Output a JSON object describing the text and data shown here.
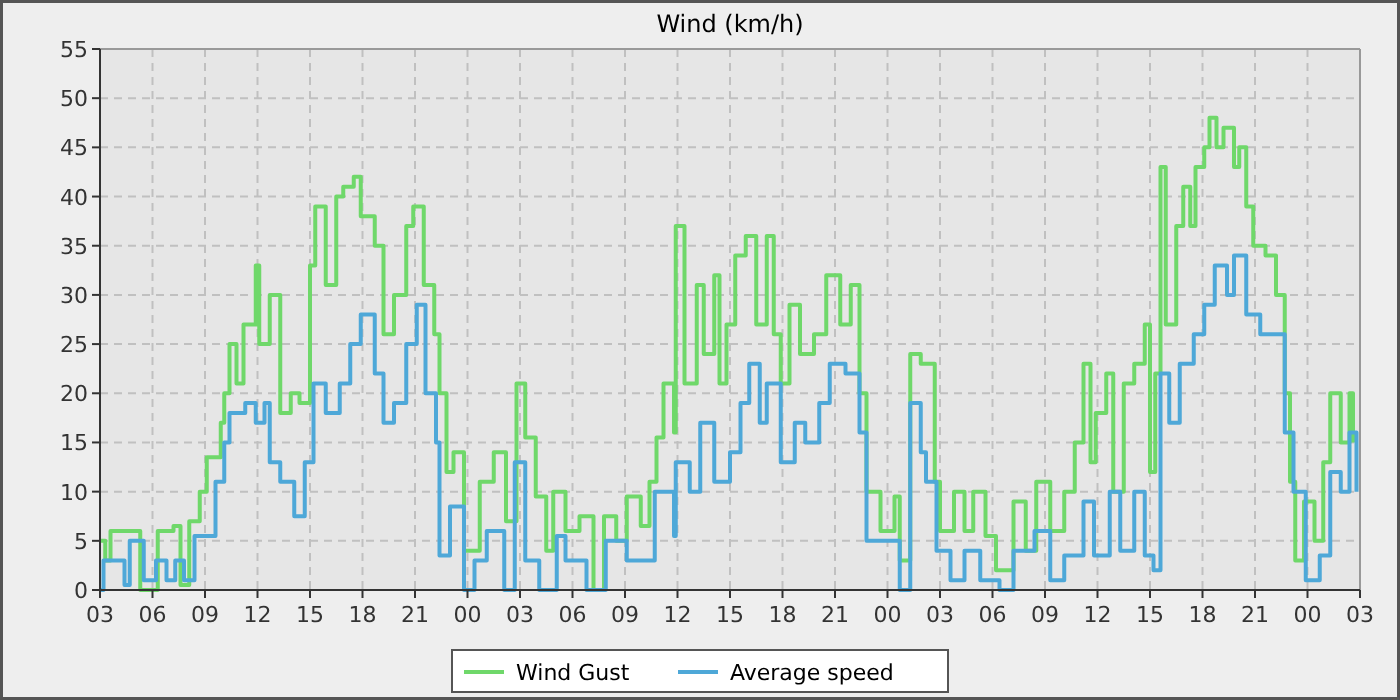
{
  "chart_data": {
    "type": "step",
    "title": "Wind (km/h)",
    "xlim": [
      3,
      75
    ],
    "xticks": [
      {
        "value": 3,
        "label": "03"
      },
      {
        "value": 6,
        "label": "06"
      },
      {
        "value": 9,
        "label": "09"
      },
      {
        "value": 12,
        "label": "12"
      },
      {
        "value": 15,
        "label": "15"
      },
      {
        "value": 18,
        "label": "18"
      },
      {
        "value": 21,
        "label": "21"
      },
      {
        "value": 24,
        "label": "00"
      },
      {
        "value": 27,
        "label": "03"
      },
      {
        "value": 30,
        "label": "06"
      },
      {
        "value": 33,
        "label": "09"
      },
      {
        "value": 36,
        "label": "12"
      },
      {
        "value": 39,
        "label": "15"
      },
      {
        "value": 42,
        "label": "18"
      },
      {
        "value": 45,
        "label": "21"
      },
      {
        "value": 48,
        "label": "00"
      },
      {
        "value": 51,
        "label": "03"
      },
      {
        "value": 54,
        "label": "06"
      },
      {
        "value": 57,
        "label": "09"
      },
      {
        "value": 60,
        "label": "12"
      },
      {
        "value": 63,
        "label": "15"
      },
      {
        "value": 66,
        "label": "18"
      },
      {
        "value": 69,
        "label": "21"
      },
      {
        "value": 72,
        "label": "00"
      },
      {
        "value": 75,
        "label": "03"
      }
    ],
    "ylim": [
      0,
      55
    ],
    "yticks": [
      0,
      5,
      10,
      15,
      20,
      25,
      30,
      35,
      40,
      45,
      50,
      55
    ],
    "grid": true,
    "legend": "bottom",
    "line_style": "solid",
    "series": [
      {
        "name": "Wind Gust",
        "color": "#6fd86a",
        "x": [
          3,
          3.3,
          3.6,
          4.4,
          5.3,
          6.3,
          7.2,
          7.6,
          8.1,
          8.7,
          9.1,
          9.9,
          10.1,
          10.4,
          10.8,
          11.2,
          11.9,
          12.1,
          12.7,
          13.3,
          13.9,
          14.4,
          15,
          15.3,
          15.9,
          16.5,
          16.9,
          17.5,
          17.9,
          18.7,
          19.2,
          19.8,
          20.5,
          20.9,
          21.5,
          22.1,
          22.4,
          22.8,
          23.2,
          23.8,
          24.7,
          25.5,
          26.2,
          26.8,
          27.3,
          27.9,
          28.5,
          28.9,
          29.6,
          30.4,
          31.2,
          31.8,
          32.5,
          33.1,
          33.9,
          34.4,
          34.8,
          35.2,
          35.8,
          35.9,
          36.4,
          37.1,
          37.5,
          38.1,
          38.4,
          38.8,
          39.3,
          39.9,
          40.5,
          41.1,
          41.5,
          41.9,
          42.4,
          43,
          43.8,
          44.5,
          45.3,
          45.9,
          46.4,
          46.8,
          47.6,
          48.4,
          48.7,
          49.3,
          49.9,
          50.7,
          51,
          51.8,
          52.4,
          52.9,
          53.6,
          54.2,
          55.2,
          55.9,
          56.5,
          57.3,
          58.1,
          58.7,
          59.2,
          59.6,
          59.9,
          60.5,
          60.9,
          61.5,
          62.1,
          62.7,
          63,
          63.3,
          63.6,
          63.9,
          64.5,
          64.9,
          65.3,
          65.6,
          66.1,
          66.4,
          66.8,
          67.2,
          67.8,
          68.1,
          68.5,
          68.9,
          69.6,
          70.2,
          70.7,
          71,
          71.3,
          71.8,
          72.4,
          72.9,
          73.3,
          73.9,
          74.4,
          74.6
        ],
        "values": [
          5,
          3,
          6,
          6,
          0,
          6,
          6.5,
          0.5,
          7,
          10,
          13.5,
          17,
          20,
          25,
          21,
          27,
          33,
          25,
          30,
          18,
          20,
          19,
          33,
          39,
          31,
          40,
          41,
          42,
          38,
          35,
          26,
          30,
          37,
          39,
          31,
          26,
          20,
          12,
          14,
          4,
          11,
          14,
          7,
          21,
          15.5,
          9.5,
          4,
          10,
          6,
          7.5,
          0,
          7.5,
          5,
          9.5,
          6.5,
          11,
          15.5,
          21,
          16,
          37,
          21,
          31,
          24,
          32,
          21,
          27,
          34,
          36,
          27,
          36,
          26,
          21,
          29,
          24,
          26,
          32,
          27,
          31,
          20,
          10,
          6,
          9.5,
          3,
          24,
          23,
          11,
          6,
          10,
          6,
          10,
          5.5,
          2,
          9,
          4,
          11,
          6,
          10,
          15,
          23,
          13,
          18,
          22,
          10,
          21,
          23,
          27,
          12,
          22,
          43,
          27,
          37,
          41,
          37,
          43,
          45,
          48,
          45,
          47,
          43,
          45,
          39,
          35,
          34,
          30,
          20,
          11,
          3,
          9,
          5,
          13,
          20,
          15,
          20,
          15
        ]
      },
      {
        "name": "Average speed",
        "color": "#4ea8d8",
        "x": [
          3,
          3.2,
          4.4,
          4.7,
          5.5,
          6.2,
          6.8,
          7.3,
          7.8,
          8.4,
          9.3,
          9.6,
          10.1,
          10.4,
          11.3,
          11.9,
          12.4,
          12.7,
          13.3,
          14.1,
          14.7,
          15.2,
          15.9,
          16.7,
          17.3,
          17.9,
          18.7,
          19.2,
          19.8,
          20.5,
          21.1,
          21.6,
          22.2,
          22.4,
          23,
          23.8,
          24.4,
          25.1,
          26.1,
          26.7,
          27.3,
          28.1,
          29.1,
          29.6,
          30.8,
          31.9,
          33.1,
          34.7,
          35.8,
          35.9,
          36.7,
          37.3,
          38.1,
          39,
          39.6,
          40.1,
          40.7,
          41.1,
          41.9,
          42.7,
          43.3,
          44.1,
          44.7,
          45.6,
          46.4,
          46.8,
          47.9,
          48.7,
          49.3,
          49.9,
          50.2,
          50.8,
          51.6,
          52.4,
          53.3,
          54.4,
          55.2,
          56.4,
          57.3,
          58.1,
          59.2,
          59.8,
          60.7,
          61.3,
          62.1,
          62.7,
          63.2,
          63.6,
          64.1,
          64.7,
          65.5,
          66.1,
          66.7,
          67.4,
          67.8,
          68.5,
          69.3,
          70.1,
          70.7,
          71.2,
          71.9,
          72.7,
          73.3,
          73.9,
          74.4,
          74.8
        ],
        "values": [
          0,
          3,
          0.5,
          5,
          1,
          3,
          1,
          3,
          1,
          5.5,
          5.5,
          11,
          15,
          18,
          19,
          17,
          19,
          13,
          11,
          7.5,
          13,
          21,
          18,
          21,
          25,
          28,
          22,
          17,
          19,
          25,
          29,
          20,
          15,
          3.5,
          8.5,
          0,
          3,
          6,
          0,
          13,
          3,
          0,
          5.5,
          3,
          0,
          5,
          3,
          10,
          5.5,
          13,
          10,
          17,
          11,
          14,
          19,
          23,
          17,
          21,
          13,
          17,
          15,
          19,
          23,
          22,
          16,
          5,
          5,
          0,
          19,
          14,
          11,
          4,
          1,
          4,
          1,
          0,
          4,
          6,
          1,
          3.5,
          9,
          3.5,
          10,
          4,
          10,
          3.5,
          2,
          22,
          17,
          23,
          26,
          29,
          33,
          30,
          34,
          28,
          26,
          26,
          16,
          10,
          1,
          3.5,
          12,
          10,
          16,
          10
        ]
      }
    ]
  }
}
